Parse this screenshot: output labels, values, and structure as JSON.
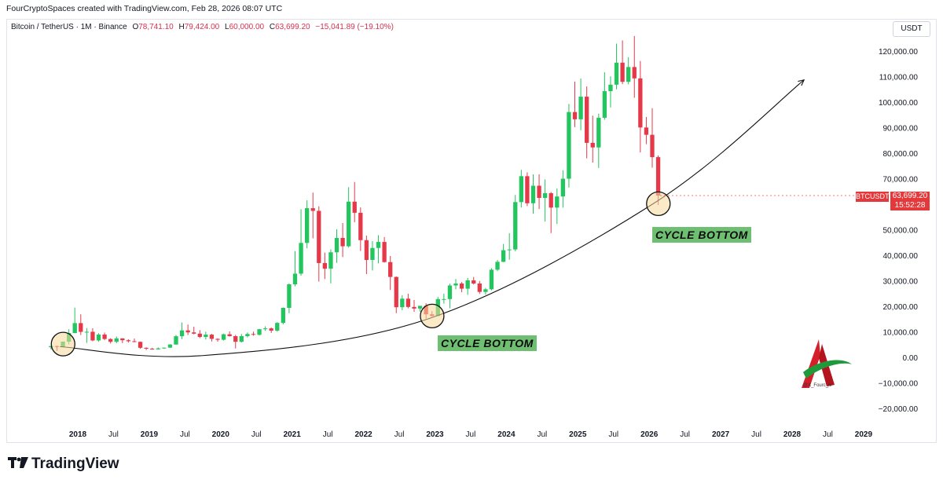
{
  "header": {
    "attribution": "FourCryptoSpaces created with TradingView.com, Feb 28, 2026 08:07 UTC"
  },
  "symbol": {
    "name": "Bitcoin / TetherUS · 1M · Binance",
    "open_label": "O",
    "open": "78,741.10",
    "high_label": "H",
    "high": "79,424.00",
    "low_label": "L",
    "low": "60,000.00",
    "close_label": "C",
    "close": "63,699.20",
    "change": "−15,041.89 (−19.10%)"
  },
  "currency": "USDT",
  "price_tag": {
    "symbol": "BTCUSDT",
    "price": "63,699.20",
    "countdown": "15:52:28"
  },
  "annotations": {
    "cycle_bottom_1": "CYCLE BOTTOM",
    "cycle_bottom_2": "CYCLE BOTTOM"
  },
  "brand": {
    "logo_text": "TradingView",
    "watermark_handle": "@X_Fourc_iv"
  },
  "colors": {
    "up": "#26a69a",
    "up_fill": "#22c55e",
    "down": "#ef5350",
    "down_fill": "#e5394a",
    "highlight": "#f8d99a",
    "label_bg": "#6fbf73"
  },
  "chart_data": {
    "type": "candlestick",
    "title": "Bitcoin / TetherUS · 1M · Binance",
    "ylim": [
      -25000,
      127000
    ],
    "y_ticks": [
      120000,
      110000,
      100000,
      90000,
      80000,
      70000,
      50000,
      40000,
      30000,
      20000,
      10000,
      0,
      -10000,
      -20000
    ],
    "y_tick_labels": [
      "120,000.00",
      "110,000.00",
      "100,000.00",
      "90,000.00",
      "80,000.00",
      "70,000.00",
      "50,000.00",
      "40,000.00",
      "30,000.00",
      "20,000.00",
      "10,000.00",
      "0.00",
      "−10,000.00",
      "−20,000.00"
    ],
    "x_ticks": [
      {
        "label": "2018",
        "t": 2018.0,
        "bold": true
      },
      {
        "label": "Jul",
        "t": 2018.5
      },
      {
        "label": "2019",
        "t": 2019.0,
        "bold": true
      },
      {
        "label": "Jul",
        "t": 2019.5
      },
      {
        "label": "2020",
        "t": 2020.0,
        "bold": true
      },
      {
        "label": "Jul",
        "t": 2020.5
      },
      {
        "label": "2021",
        "t": 2021.0,
        "bold": true
      },
      {
        "label": "Jul",
        "t": 2021.5
      },
      {
        "label": "2022",
        "t": 2022.0,
        "bold": true
      },
      {
        "label": "Jul",
        "t": 2022.5
      },
      {
        "label": "2023",
        "t": 2023.0,
        "bold": true
      },
      {
        "label": "Jul",
        "t": 2023.5
      },
      {
        "label": "2024",
        "t": 2024.0,
        "bold": true
      },
      {
        "label": "Jul",
        "t": 2024.5
      },
      {
        "label": "2025",
        "t": 2025.0,
        "bold": true
      },
      {
        "label": "Jul",
        "t": 2025.5
      },
      {
        "label": "2026",
        "t": 2026.0,
        "bold": true
      },
      {
        "label": "Jul",
        "t": 2026.5
      },
      {
        "label": "2027",
        "t": 2027.0,
        "bold": true
      },
      {
        "label": "Jul",
        "t": 2027.5
      },
      {
        "label": "2028",
        "t": 2028.0,
        "bold": true
      },
      {
        "label": "Jul",
        "t": 2028.5
      },
      {
        "label": "2029",
        "t": 2029.0,
        "bold": true
      }
    ],
    "candles_start": "2017-08",
    "candles": [
      [
        4261,
        4745,
        3400,
        4724
      ],
      [
        4690,
        4939,
        2817,
        4378
      ],
      [
        4378,
        6470,
        4110,
        6463
      ],
      [
        6463,
        11300,
        5380,
        9838
      ],
      [
        9838,
        19798,
        9722,
        13716
      ],
      [
        13716,
        17176,
        9035,
        10285
      ],
      [
        10285,
        11786,
        5968,
        10326
      ],
      [
        10326,
        11711,
        6600,
        6923
      ],
      [
        6923,
        9759,
        6425,
        9246
      ],
      [
        9246,
        10020,
        7034,
        7494
      ],
      [
        7494,
        7786,
        5750,
        6391
      ],
      [
        6391,
        8507,
        5826,
        7730
      ],
      [
        7730,
        7770,
        5880,
        7011
      ],
      [
        7011,
        7402,
        6101,
        6626
      ],
      [
        6626,
        7680,
        6205,
        6371
      ],
      [
        6371,
        6500,
        3652,
        4041
      ],
      [
        4041,
        4236,
        3156,
        3702
      ],
      [
        3702,
        4069,
        3349,
        3434
      ],
      [
        3434,
        4198,
        3400,
        3816
      ],
      [
        3816,
        4123,
        3700,
        4103
      ],
      [
        4103,
        5467,
        4049,
        5320
      ],
      [
        5320,
        9074,
        5296,
        8574
      ],
      [
        8574,
        13970,
        7440,
        10854
      ],
      [
        10854,
        13147,
        9071,
        10085
      ],
      [
        10085,
        12325,
        9320,
        9588
      ],
      [
        9588,
        10952,
        7830,
        8293
      ],
      [
        8293,
        10370,
        7300,
        9199
      ],
      [
        9199,
        9508,
        6526,
        7546
      ],
      [
        7546,
        7750,
        6430,
        7193
      ],
      [
        7193,
        9578,
        6850,
        9352
      ],
      [
        9352,
        10500,
        8450,
        8600
      ],
      [
        8600,
        9100,
        3782,
        6412
      ],
      [
        6412,
        9460,
        6150,
        8624
      ],
      [
        8624,
        10067,
        8117,
        9446
      ],
      [
        9446,
        10380,
        8800,
        9138
      ],
      [
        9138,
        11444,
        8894,
        11335
      ],
      [
        11335,
        12468,
        10659,
        11649
      ],
      [
        11649,
        12050,
        9875,
        10776
      ],
      [
        10776,
        14100,
        10374,
        13791
      ],
      [
        13791,
        19863,
        13195,
        19695
      ],
      [
        19695,
        29300,
        17572,
        28923
      ],
      [
        28923,
        41950,
        28130,
        33092
      ],
      [
        33092,
        58352,
        32296,
        45138
      ],
      [
        45138,
        61844,
        43000,
        58741
      ],
      [
        58741,
        64854,
        46930,
        57695
      ],
      [
        57695,
        59500,
        30000,
        37254
      ],
      [
        37254,
        41330,
        31000,
        35040
      ],
      [
        35040,
        42599,
        29278,
        41462
      ],
      [
        41462,
        50500,
        37332,
        47100
      ],
      [
        47100,
        52920,
        39600,
        43824
      ],
      [
        43824,
        66999,
        43283,
        61300
      ],
      [
        61300,
        69000,
        53256,
        56950
      ],
      [
        56950,
        59041,
        42000,
        46216
      ],
      [
        46216,
        47990,
        32917,
        38466
      ],
      [
        38466,
        45821,
        34322,
        43160
      ],
      [
        43160,
        48189,
        37155,
        45510
      ],
      [
        45510,
        47444,
        37386,
        37630
      ],
      [
        37630,
        40023,
        26700,
        31801
      ],
      [
        31801,
        31986,
        17622,
        19942
      ],
      [
        19942,
        24668,
        18782,
        23296
      ],
      [
        23296,
        25211,
        19520,
        20050
      ],
      [
        20050,
        22799,
        18125,
        19423
      ],
      [
        19423,
        20475,
        18190,
        20490
      ],
      [
        20490,
        21480,
        15476,
        17164
      ],
      [
        17164,
        18387,
        16256,
        16542
      ],
      [
        16542,
        23960,
        16499,
        23125
      ],
      [
        23125,
        25250,
        21351,
        23141
      ],
      [
        23141,
        29184,
        19549,
        28465
      ],
      [
        28465,
        31000,
        26942,
        29233
      ],
      [
        29233,
        29820,
        25811,
        27210
      ],
      [
        27210,
        31431,
        24800,
        30472
      ],
      [
        30472,
        31804,
        28861,
        29230
      ],
      [
        29230,
        30225,
        25166,
        25940
      ],
      [
        25940,
        27483,
        24901,
        26962
      ],
      [
        26962,
        35198,
        26538,
        34639
      ],
      [
        34639,
        38450,
        34097,
        37723
      ],
      [
        37723,
        44729,
        37615,
        42284
      ],
      [
        42284,
        48969,
        38555,
        42580
      ],
      [
        42580,
        63913,
        41884,
        61130
      ],
      [
        61130,
        73777,
        59005,
        71280
      ],
      [
        71280,
        72797,
        59573,
        60672
      ],
      [
        60672,
        71979,
        56552,
        67540
      ],
      [
        67540,
        71997,
        58402,
        62772
      ],
      [
        62772,
        70016,
        53485,
        64628
      ],
      [
        64628,
        65089,
        49000,
        58974
      ],
      [
        58974,
        66498,
        52550,
        63327
      ],
      [
        63327,
        73620,
        58946,
        70292
      ],
      [
        70292,
        99588,
        66835,
        96407
      ],
      [
        96407,
        108353,
        90500,
        93576
      ],
      [
        93576,
        109588,
        89256,
        102429
      ],
      [
        102429,
        106457,
        78258,
        84350
      ],
      [
        84350,
        95000,
        76606,
        82550
      ],
      [
        82550,
        95758,
        74508,
        94172
      ],
      [
        94172,
        111980,
        93400,
        104591
      ],
      [
        104591,
        110400,
        98200,
        107135
      ],
      [
        107135,
        123218,
        105295,
        115764
      ],
      [
        115764,
        124474,
        107350,
        108246
      ],
      [
        108246,
        117900,
        107255,
        114049
      ],
      [
        114049,
        126199,
        102000,
        109608
      ],
      [
        109608,
        116400,
        80600,
        90360
      ],
      [
        90360,
        94500,
        83822,
        87500
      ],
      [
        87500,
        97924,
        74604,
        78741
      ],
      [
        78741,
        79424,
        60000,
        63699
      ]
    ],
    "curve": {
      "from": [
        "2017-10",
        4500
      ],
      "min": [
        "2019-10",
        1000
      ],
      "to": [
        "2028-03",
        109000
      ],
      "passes_through": [
        [
          "2022-12",
          15500
        ],
        [
          "2026-02",
          61000
        ]
      ]
    },
    "highlighted_points": [
      [
        "2017-10",
        5500
      ],
      [
        "2022-12",
        16500
      ],
      [
        "2026-02",
        60500
      ]
    ]
  }
}
